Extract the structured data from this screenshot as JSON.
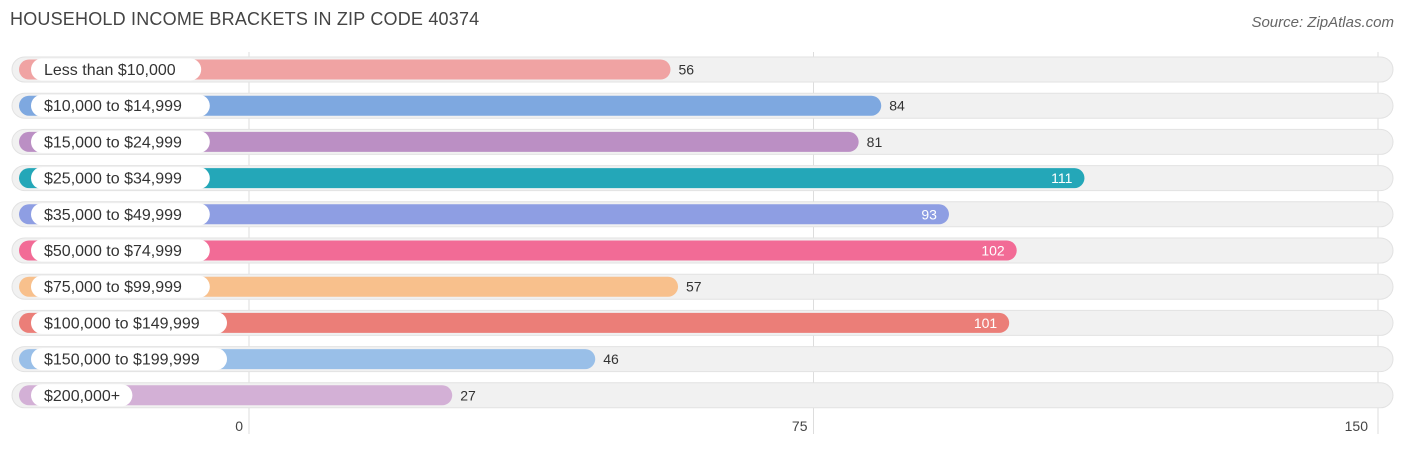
{
  "title": "HOUSEHOLD INCOME BRACKETS IN ZIP CODE 40374",
  "source": "Source: ZipAtlas.com",
  "chart_data": {
    "type": "bar",
    "orientation": "horizontal",
    "title": "HOUSEHOLD INCOME BRACKETS IN ZIP CODE 40374",
    "xlabel": "",
    "ylabel": "",
    "xlim": [
      0,
      150
    ],
    "ticks": [
      0,
      75,
      150
    ],
    "grid": true,
    "categories": [
      "Less than $10,000",
      "$10,000 to $14,999",
      "$15,000 to $24,999",
      "$25,000 to $34,999",
      "$35,000 to $49,999",
      "$50,000 to $74,999",
      "$75,000 to $99,999",
      "$100,000 to $149,999",
      "$150,000 to $199,999",
      "$200,000+"
    ],
    "values": [
      56,
      84,
      81,
      111,
      93,
      102,
      57,
      101,
      46,
      27
    ],
    "colors": [
      "#f0a3a3",
      "#7ea8e0",
      "#bb8fc4",
      "#24a7b8",
      "#8e9ee3",
      "#f26b96",
      "#f8c08c",
      "#eb7e78",
      "#99bfe8",
      "#d3b0d6"
    ]
  }
}
